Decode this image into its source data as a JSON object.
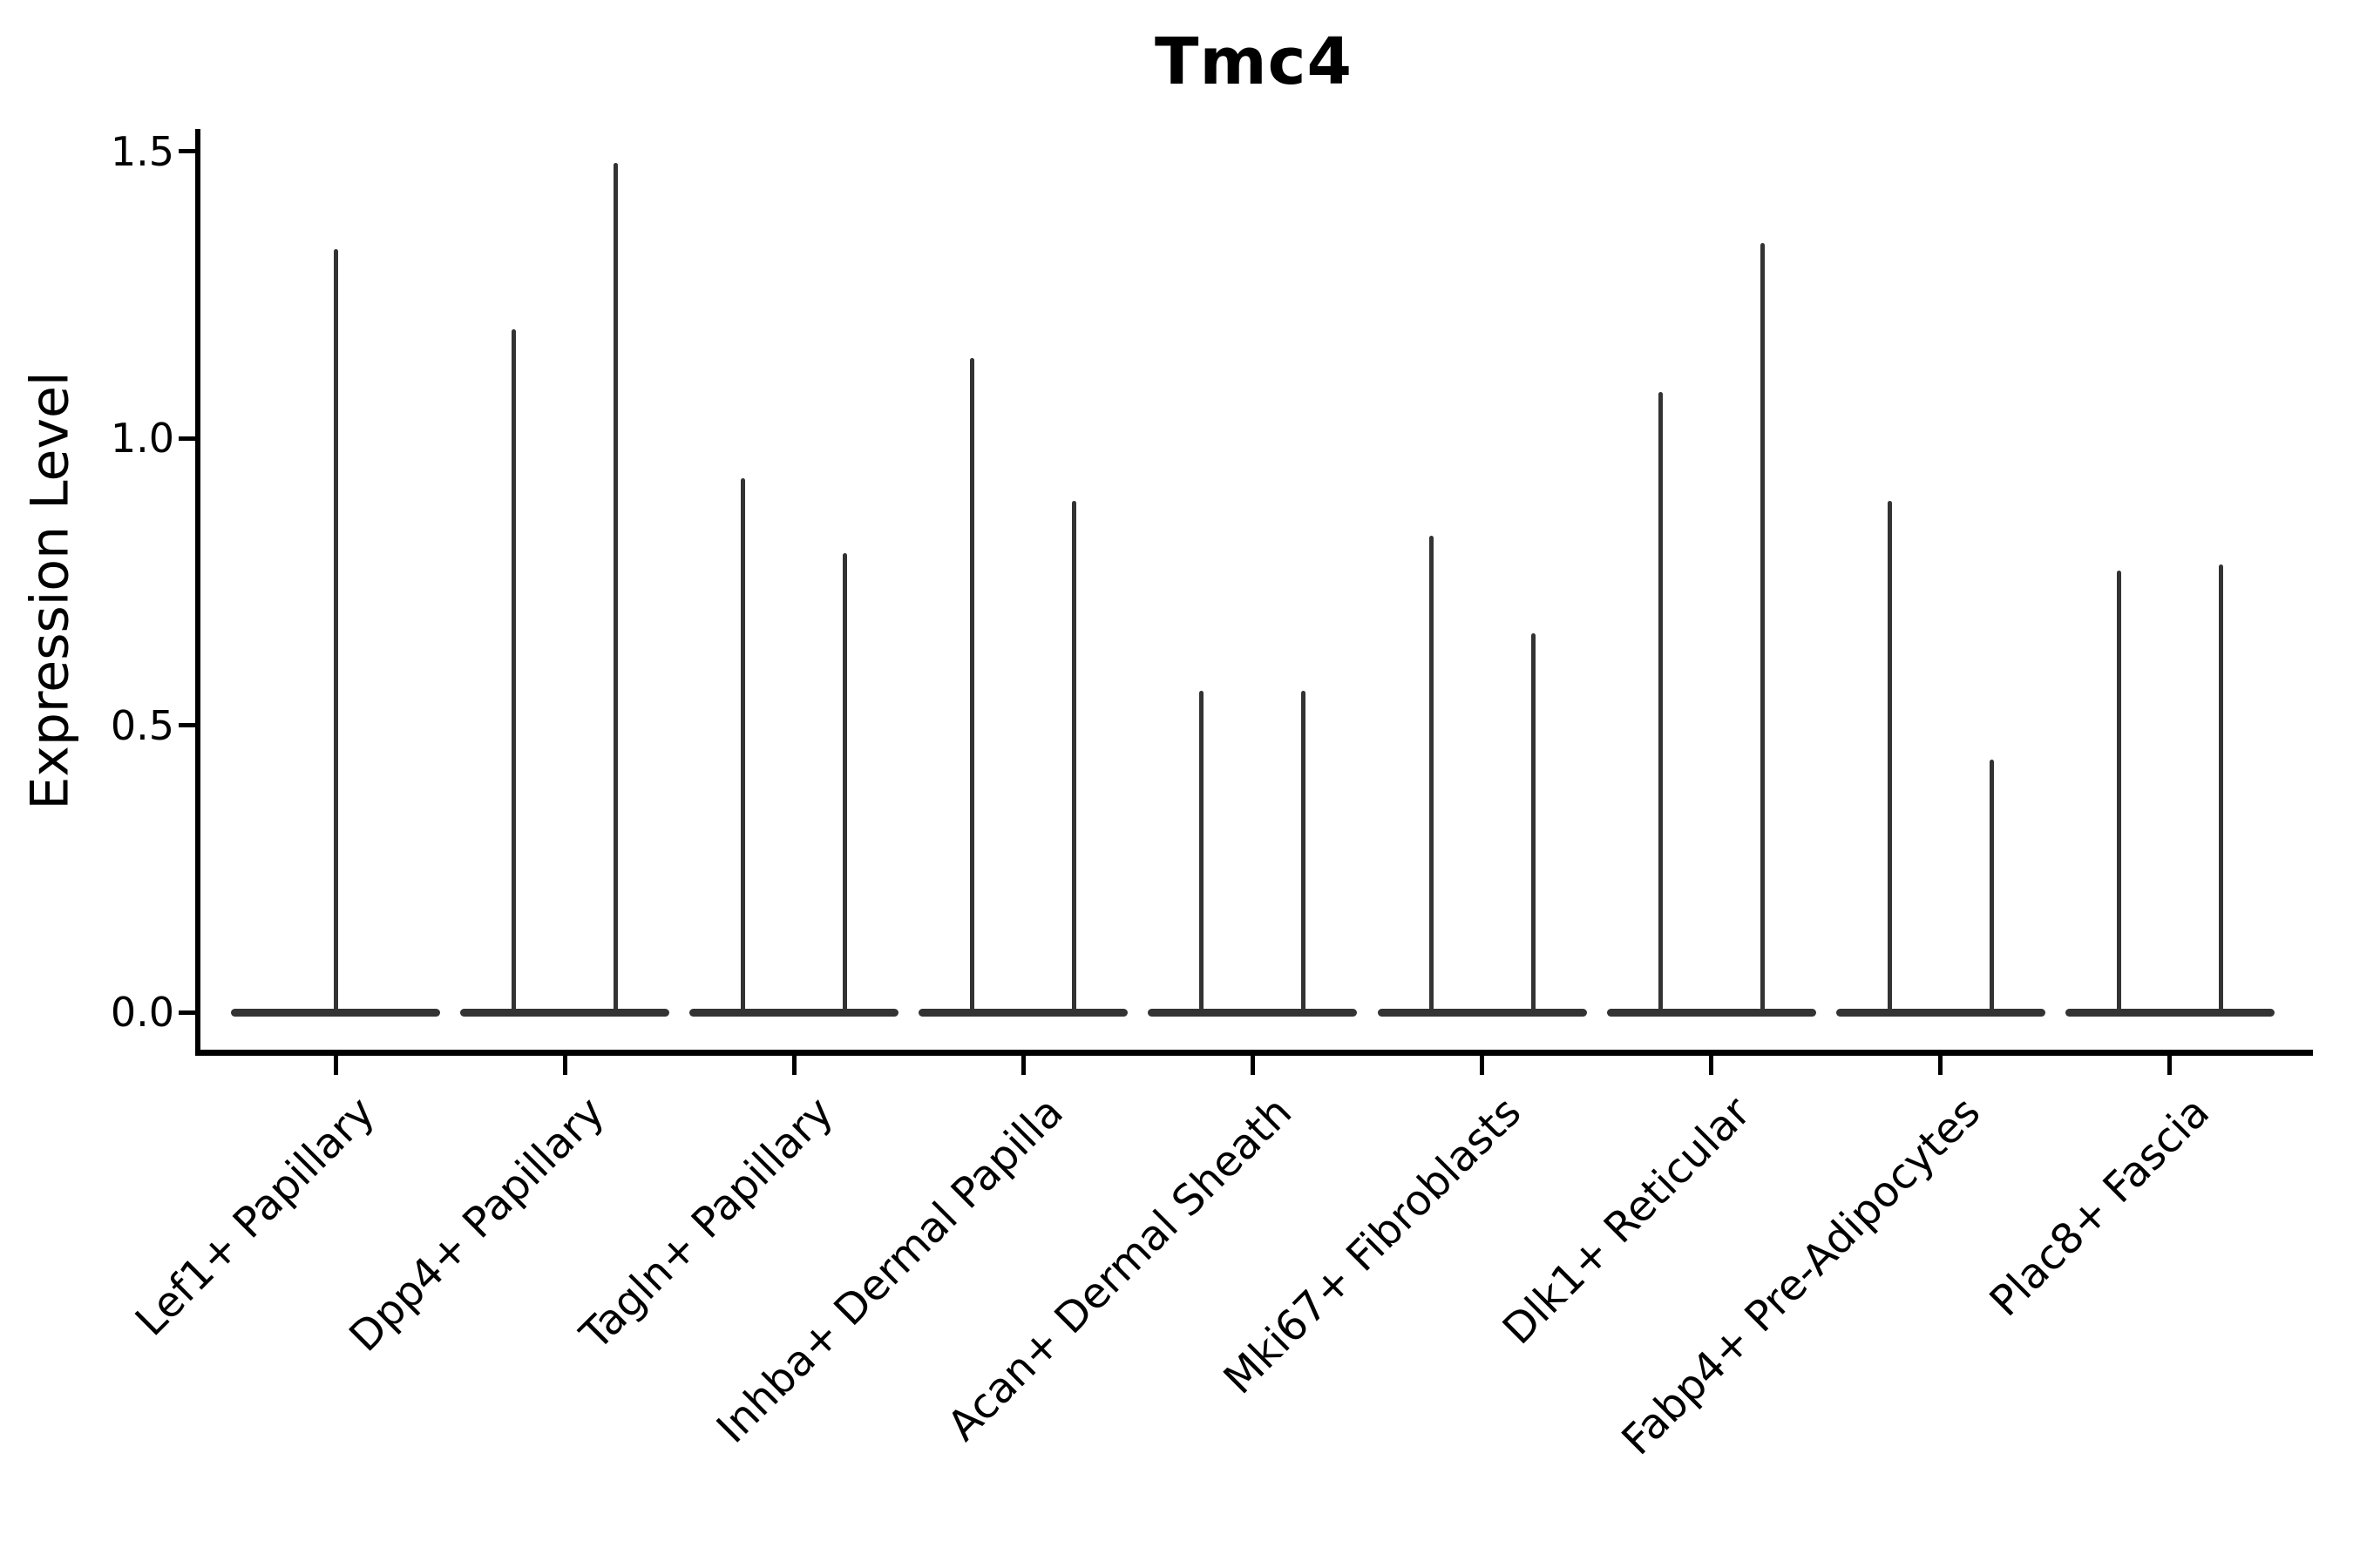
{
  "title": "Tmc4",
  "axes": {
    "y_label": "Expression Level",
    "y_ticks": [
      {
        "label": "0.0",
        "value": 0.0
      },
      {
        "label": "0.5",
        "value": 0.5
      },
      {
        "label": "1.0",
        "value": 1.0
      },
      {
        "label": "1.5",
        "value": 1.5
      }
    ]
  },
  "chart_data": {
    "type": "violin",
    "title": "Tmc4",
    "xlabel": "",
    "ylabel": "Expression Level",
    "ylim": [
      0,
      1.55
    ],
    "grid": false,
    "legend": "none",
    "violin_color": "#333333",
    "description": "Expression-level violin plot; each violin collapses to a wide base at 0 with a thin spike up to its maximum expression value. First category has one centered violin; all others contain two side-by-side violins.",
    "categories": [
      "Lef1+ Papillary",
      "Dpp4+ Papillary",
      "Tagln+ Papillary",
      "Inhba+ Dermal Papilla",
      "Acan+ Dermal Sheath",
      "Mki67+ Fibroblasts",
      "Dlk1+ Reticular",
      "Fabp4+ Pre-Adipocytes",
      "Plac8+ Fascia"
    ],
    "series": [
      {
        "category": "Lef1+ Papillary",
        "violin_max_values": [
          1.33
        ]
      },
      {
        "category": "Dpp4+ Papillary",
        "violin_max_values": [
          1.19,
          1.48
        ]
      },
      {
        "category": "Tagln+ Papillary",
        "violin_max_values": [
          0.93,
          0.8
        ]
      },
      {
        "category": "Inhba+ Dermal Papilla",
        "violin_max_values": [
          1.14,
          0.89
        ]
      },
      {
        "category": "Acan+ Dermal Sheath",
        "violin_max_values": [
          0.56,
          0.56
        ]
      },
      {
        "category": "Mki67+ Fibroblasts",
        "violin_max_values": [
          0.83,
          0.66
        ]
      },
      {
        "category": "Dlk1+ Reticular",
        "violin_max_values": [
          1.08,
          1.34
        ]
      },
      {
        "category": "Fabp4+ Pre-Adipocytes",
        "violin_max_values": [
          0.89,
          0.44
        ]
      },
      {
        "category": "Plac8+ Fascia",
        "violin_max_values": [
          0.77,
          0.78
        ]
      }
    ]
  }
}
